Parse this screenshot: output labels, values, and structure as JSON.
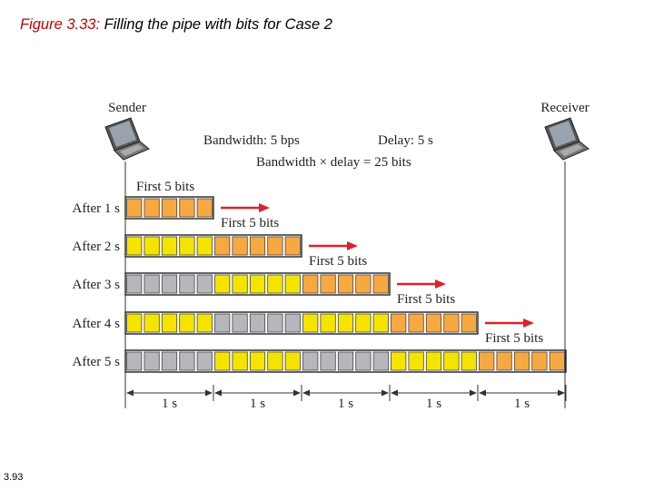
{
  "title": {
    "lead": "Figure 3.33:",
    "rest": "Filling the pipe with bits for Case 2"
  },
  "slide_number": "3.93",
  "sender_label": "Sender",
  "receiver_label": "Receiver",
  "bandwidth_text": "Bandwidth: 5 bps",
  "delay_text": "Delay: 5 s",
  "product_text": "Bandwidth × delay = 25 bits",
  "first_bits_label": "First 5 bits",
  "rows": [
    {
      "label": "After 1 s",
      "segments": [
        "orange"
      ]
    },
    {
      "label": "After 2 s",
      "segments": [
        "yellow",
        "orange"
      ]
    },
    {
      "label": "After 3 s",
      "segments": [
        "gray",
        "yellow",
        "orange"
      ]
    },
    {
      "label": "After 4 s",
      "segments": [
        "yellow",
        "gray",
        "yellow",
        "orange"
      ]
    },
    {
      "label": "After 5 s",
      "segments": [
        "gray",
        "yellow",
        "gray",
        "yellow",
        "orange"
      ]
    }
  ],
  "interval_labels": [
    "1 s",
    "1 s",
    "1 s",
    "1 s",
    "1 s"
  ],
  "colors": {
    "orange": "#f7a941",
    "yellow": "#f5e400",
    "gray": "#b5b7bc",
    "arrow": "#e0202a"
  }
}
